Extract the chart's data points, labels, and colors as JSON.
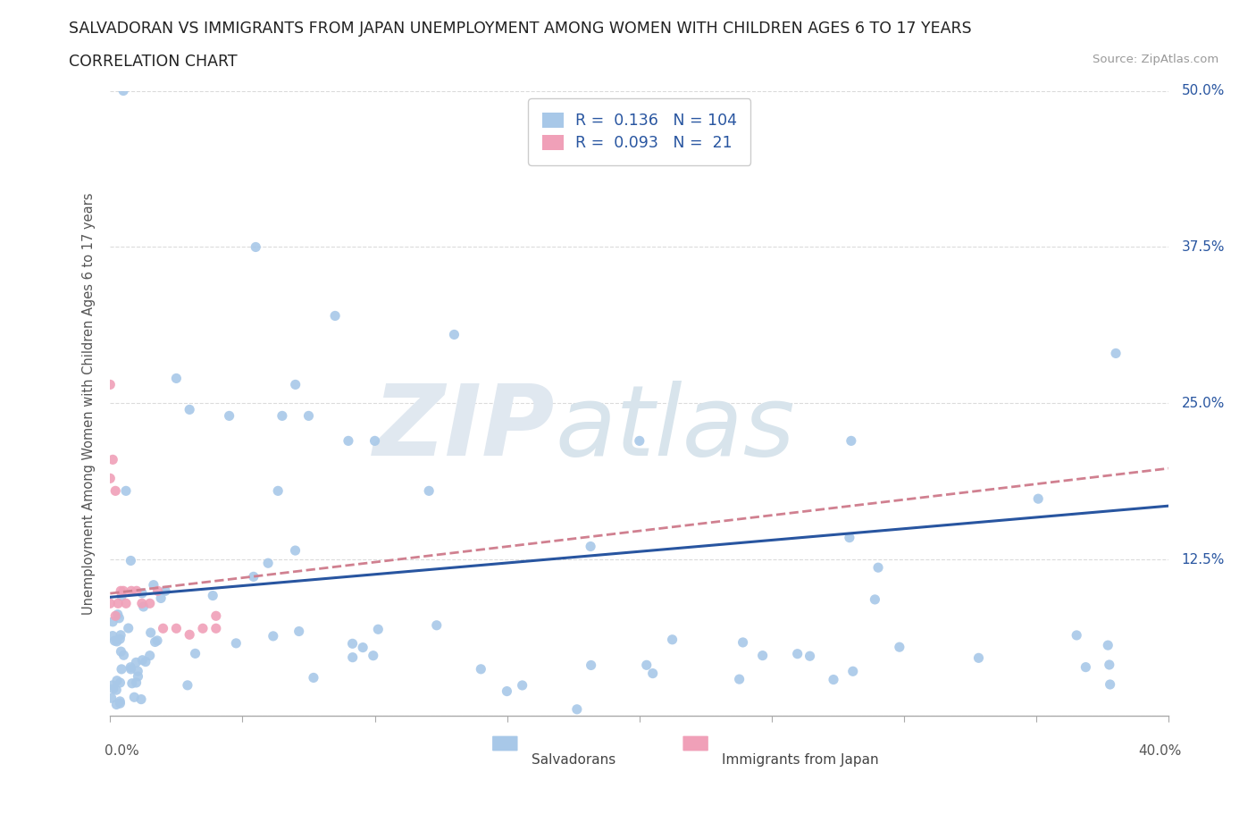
{
  "title_line1": "SALVADORAN VS IMMIGRANTS FROM JAPAN UNEMPLOYMENT AMONG WOMEN WITH CHILDREN AGES 6 TO 17 YEARS",
  "title_line2": "CORRELATION CHART",
  "source_text": "Source: ZipAtlas.com",
  "ylabel": "Unemployment Among Women with Children Ages 6 to 17 years",
  "xlim": [
    0.0,
    0.4
  ],
  "ylim": [
    0.0,
    0.5
  ],
  "xticks": [
    0.0,
    0.05,
    0.1,
    0.15,
    0.2,
    0.25,
    0.3,
    0.35,
    0.4
  ],
  "ytick_positions": [
    0.0,
    0.125,
    0.25,
    0.375,
    0.5
  ],
  "yticklabels": [
    "",
    "12.5%",
    "25.0%",
    "37.5%",
    "50.0%"
  ],
  "R_salvadoran": 0.136,
  "N_salvadoran": 104,
  "R_japan": 0.093,
  "N_japan": 21,
  "color_salvadoran": "#a8c8e8",
  "color_japan": "#f0a0b8",
  "color_trend_salvadoran": "#2855a0",
  "color_trend_japan": "#d08090",
  "background_color": "#ffffff",
  "grid_color": "#d8d8d8",
  "trend_salv_start": 0.095,
  "trend_salv_end": 0.168,
  "trend_japan_start": 0.098,
  "trend_japan_end": 0.198
}
